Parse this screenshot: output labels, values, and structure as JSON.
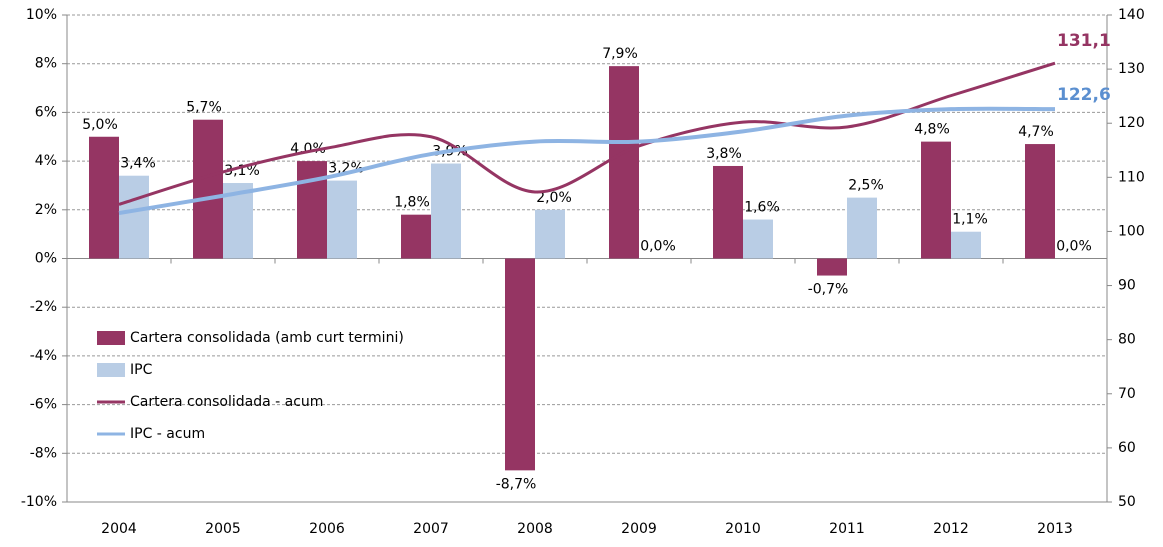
{
  "chart_data": {
    "type": "bar",
    "categories": [
      "2004",
      "2005",
      "2006",
      "2007",
      "2008",
      "2009",
      "2010",
      "2011",
      "2012",
      "2013"
    ],
    "series": [
      {
        "name": "Cartera consolidada (amb curt termini)",
        "type": "bar",
        "color": "#953563",
        "values": [
          5.0,
          5.7,
          4.0,
          1.8,
          -8.7,
          7.9,
          3.8,
          -0.7,
          4.8,
          4.7
        ],
        "value_labels": [
          "5,0%",
          "5,7%",
          "4,0%",
          "1,8%",
          "-8,7%",
          "7,9%",
          "3,8%",
          "-0,7%",
          "4,8%",
          "4,7%"
        ]
      },
      {
        "name": "IPC",
        "type": "bar",
        "color": "#b9cde5",
        "values": [
          3.4,
          3.1,
          3.2,
          3.9,
          2.0,
          0.0,
          1.6,
          2.5,
          1.1,
          0.0
        ],
        "value_labels": [
          "3,4%",
          "3,1%",
          "3,2%",
          "3,9%",
          "2,0%",
          "0,0%",
          "1,6%",
          "2,5%",
          "1,1%",
          "0,0%"
        ]
      },
      {
        "name": "Cartera consolidada - acum",
        "type": "line",
        "axis": "y2",
        "color": "#953563",
        "values": [
          105.0,
          111.0,
          115.4,
          117.5,
          107.3,
          115.8,
          120.2,
          119.3,
          125.1,
          131.1
        ],
        "end_label": "131,1"
      },
      {
        "name": "IPC - acum",
        "type": "line",
        "axis": "y2",
        "color": "#8eb4e3",
        "values": [
          103.4,
          106.6,
          110.0,
          114.3,
          116.6,
          116.6,
          118.5,
          121.4,
          122.6,
          122.6
        ],
        "end_label": "122,6",
        "end_label_color": "#5b8fd0"
      }
    ],
    "ylim": [
      -10,
      10
    ],
    "yticks": [
      {
        "value": -10,
        "label": "-10%"
      },
      {
        "value": -8,
        "label": "-8%"
      },
      {
        "value": -6,
        "label": "-6%"
      },
      {
        "value": -4,
        "label": "-4%"
      },
      {
        "value": -2,
        "label": "-2%"
      },
      {
        "value": 0,
        "label": "0%"
      },
      {
        "value": 2,
        "label": "2%"
      },
      {
        "value": 4,
        "label": "4%"
      },
      {
        "value": 6,
        "label": "6%"
      },
      {
        "value": 8,
        "label": "8%"
      },
      {
        "value": 10,
        "label": "10%"
      }
    ],
    "y2lim": [
      50,
      140
    ],
    "y2ticks": [
      50,
      60,
      70,
      80,
      90,
      100,
      110,
      120,
      130,
      140
    ],
    "grid": true,
    "legend": "lower left"
  }
}
